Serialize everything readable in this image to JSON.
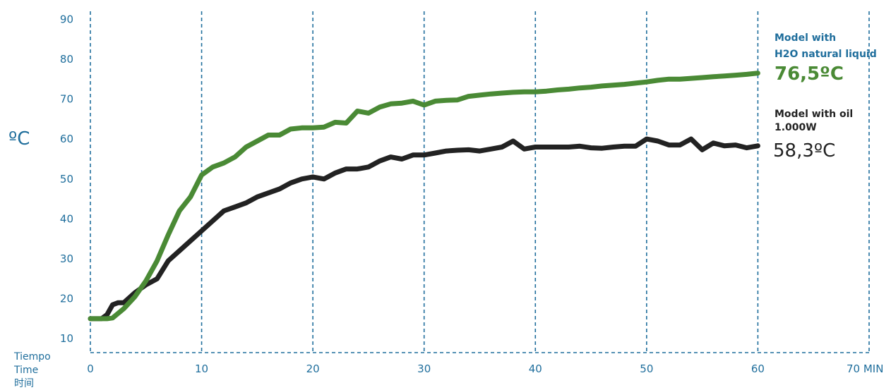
{
  "chart_data": {
    "type": "line",
    "ylabel": "ºC",
    "xlabel_lines": [
      "Tiempo",
      "Time",
      "时间"
    ],
    "x_ticks": [
      0,
      10,
      20,
      30,
      40,
      50,
      60,
      70
    ],
    "x_tick_labels": [
      "0",
      "10",
      "20",
      "30",
      "40",
      "50",
      "60",
      "70 MIN"
    ],
    "y_ticks": [
      10,
      20,
      30,
      40,
      50,
      60,
      70,
      80,
      90
    ],
    "xlim": [
      0,
      70
    ],
    "ylim": [
      6.5,
      92
    ],
    "grid": "vertical dashed",
    "series": [
      {
        "id": "h2o",
        "name_lines": [
          "Model with",
          "H2O natural liquid"
        ],
        "final_label": "76,5ºC",
        "color": "#4a8a35",
        "x": [
          0,
          1,
          1.5,
          2,
          3,
          4,
          5,
          6,
          7,
          8,
          9,
          10,
          11,
          12,
          13,
          14,
          15,
          16,
          17,
          18,
          19,
          20,
          21,
          22,
          23,
          24,
          25,
          26,
          27,
          28,
          29,
          30,
          31,
          32,
          33,
          34,
          35,
          36,
          37,
          38,
          39,
          40,
          41,
          42,
          43,
          44,
          45,
          46,
          47,
          48,
          49,
          50,
          51,
          52,
          53,
          54,
          55,
          56,
          57,
          58,
          59,
          60
        ],
        "y": [
          15,
          15,
          15,
          15.2,
          17.5,
          20.5,
          24.5,
          29.5,
          36,
          42,
          45.5,
          51,
          53,
          54,
          55.5,
          58,
          59.5,
          61,
          61,
          62.5,
          62.8,
          62.8,
          63,
          64.2,
          64,
          67,
          66.5,
          68,
          68.8,
          69,
          69.5,
          68.5,
          69.5,
          69.7,
          69.8,
          70.7,
          71,
          71.3,
          71.5,
          71.7,
          71.8,
          71.8,
          72,
          72.3,
          72.5,
          72.8,
          73,
          73.3,
          73.5,
          73.7,
          74,
          74.3,
          74.7,
          75,
          75,
          75.2,
          75.4,
          75.6,
          75.8,
          76,
          76.2,
          76.5
        ]
      },
      {
        "id": "oil",
        "name_lines": [
          "Model with oil",
          "1.000W"
        ],
        "final_label": "58,3ºC",
        "color": "#222222",
        "x": [
          0,
          1,
          1.5,
          2,
          2.5,
          3,
          4,
          5,
          6,
          7,
          8,
          9,
          10,
          11,
          12,
          13,
          14,
          15,
          16,
          17,
          18,
          19,
          20,
          21,
          22,
          23,
          24,
          25,
          26,
          27,
          28,
          29,
          30,
          31,
          32,
          33,
          34,
          35,
          36,
          37,
          38,
          39,
          40,
          41,
          42,
          43,
          44,
          45,
          46,
          47,
          48,
          49,
          50,
          51,
          52,
          53,
          54,
          55,
          56,
          57,
          58,
          59,
          60
        ],
        "y": [
          15,
          15,
          16,
          18.5,
          19,
          19,
          21.5,
          23.5,
          25,
          29.5,
          32,
          34.5,
          37,
          39.5,
          42,
          43,
          44,
          45.5,
          46.5,
          47.5,
          49,
          50,
          50.5,
          50,
          51.5,
          52.5,
          52.5,
          53,
          54.5,
          55.5,
          55,
          56,
          56,
          56.5,
          57,
          57.2,
          57.3,
          57,
          57.5,
          58,
          59.5,
          57.5,
          58,
          58,
          58,
          58,
          58.2,
          57.8,
          57.7,
          58,
          58.2,
          58.2,
          60,
          59.5,
          58.5,
          58.5,
          60,
          57.3,
          59,
          58.3,
          58.5,
          57.8,
          58.3
        ]
      }
    ]
  }
}
